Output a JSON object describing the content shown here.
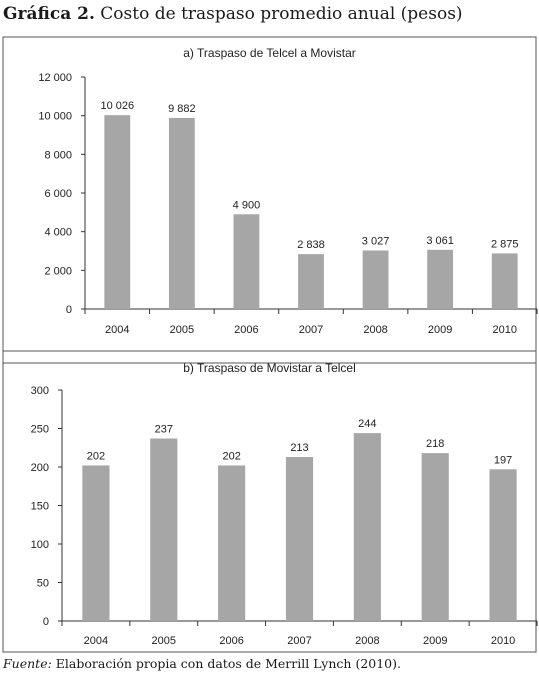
{
  "figure": {
    "title_bold": "Gráfica 2.",
    "title_rest": " Costo de traspaso promedio anual (pesos)",
    "source_label": "Fuente:",
    "source_text": " Elaboración propia con datos de Merrill Lynch (2010)."
  },
  "colors": {
    "bar": "#a6a6a6",
    "axis": "#333333",
    "frame": "#555555"
  },
  "chart_data": [
    {
      "type": "bar",
      "title": "a) Traspaso de Telcel a Movistar",
      "categories": [
        "2004",
        "2005",
        "2006",
        "2007",
        "2008",
        "2009",
        "2010"
      ],
      "values": [
        10026,
        9882,
        4900,
        2838,
        3027,
        3061,
        2875
      ],
      "value_labels": [
        "10 026",
        "9 882",
        "4 900",
        "2 838",
        "3 027",
        "3 061",
        "2 875"
      ],
      "yticks": [
        0,
        2000,
        4000,
        6000,
        8000,
        10000,
        12000
      ],
      "ytick_labels": [
        "0",
        "2 000",
        "4 000",
        "6 000",
        "8 000",
        "10 000",
        "12 000"
      ],
      "ylim": [
        0,
        12000
      ],
      "xlabel": "",
      "ylabel": "",
      "grid": false
    },
    {
      "type": "bar",
      "title": "b) Traspaso de Movistar a Telcel",
      "categories": [
        "2004",
        "2005",
        "2006",
        "2007",
        "2008",
        "2009",
        "2010"
      ],
      "values": [
        202,
        237,
        202,
        213,
        244,
        218,
        197
      ],
      "value_labels": [
        "202",
        "237",
        "202",
        "213",
        "244",
        "218",
        "197"
      ],
      "yticks": [
        0,
        50,
        100,
        150,
        200,
        250,
        300
      ],
      "ytick_labels": [
        "0",
        "50",
        "100",
        "150",
        "200",
        "250",
        "300"
      ],
      "ylim": [
        0,
        300
      ],
      "xlabel": "",
      "ylabel": "",
      "grid": false
    }
  ]
}
